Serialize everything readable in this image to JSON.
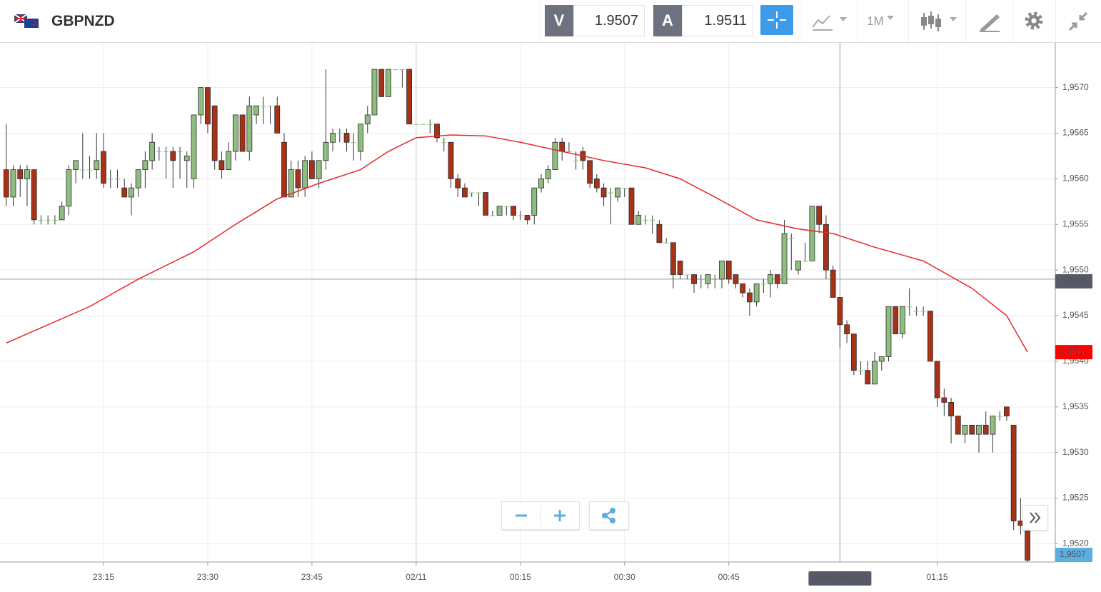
{
  "header": {
    "symbol": "GBPNZD",
    "bid_label": "V",
    "bid": "1.9507",
    "ask_label": "A",
    "ask": "1.9511",
    "timeframe": "1M"
  },
  "chart_data": {
    "type": "candlestick",
    "categories": [
      "23:01",
      "23:02",
      "23:03",
      "23:04",
      "23:05",
      "23:06",
      "23:07",
      "23:08",
      "23:09",
      "23:10",
      "23:11",
      "23:12",
      "23:13",
      "23:14",
      "23:15",
      "23:16",
      "23:17",
      "23:18",
      "23:19",
      "23:20",
      "23:21",
      "23:22",
      "23:23",
      "23:24",
      "23:25",
      "23:26",
      "23:27",
      "23:28",
      "23:29",
      "23:30",
      "23:31",
      "23:32",
      "23:33",
      "23:34",
      "23:35",
      "23:36",
      "23:37",
      "23:38",
      "23:39",
      "23:40",
      "23:41",
      "23:42",
      "23:43",
      "23:44",
      "23:45",
      "23:46",
      "23:47",
      "23:48",
      "23:49",
      "23:50",
      "23:51",
      "23:52",
      "23:53",
      "23:54",
      "23:55",
      "23:56",
      "23:57",
      "23:58",
      "23:59",
      "00:00",
      "00:01",
      "00:02",
      "00:03",
      "00:04",
      "00:05",
      "00:06",
      "00:07",
      "00:08",
      "00:09",
      "00:10",
      "00:11",
      "00:12",
      "00:13",
      "00:14",
      "00:15",
      "00:16",
      "00:17",
      "00:18",
      "00:19",
      "00:20",
      "00:21",
      "00:22",
      "00:23",
      "00:24",
      "00:25",
      "00:26",
      "00:27",
      "00:28",
      "00:29",
      "00:30",
      "00:31",
      "00:32",
      "00:33",
      "00:34",
      "00:35",
      "00:36",
      "00:37",
      "00:38",
      "00:39",
      "00:40",
      "00:41",
      "00:42",
      "00:43",
      "00:44",
      "00:45",
      "00:46",
      "00:47",
      "00:48",
      "00:49",
      "00:50",
      "00:51",
      "00:52",
      "00:53",
      "00:54",
      "00:55",
      "00:56",
      "00:57",
      "00:58",
      "00:59",
      "01:00",
      "01:01",
      "01:02",
      "01:03",
      "01:04",
      "01:05",
      "01:06",
      "01:07",
      "01:08",
      "01:09",
      "01:10",
      "01:11",
      "01:12",
      "01:13",
      "01:14",
      "01:15",
      "01:16",
      "01:17",
      "01:18",
      "01:19",
      "01:20",
      "01:21",
      "01:22",
      "01:23",
      "01:24",
      "01:25",
      "01:26",
      "01:27",
      "01:28"
    ],
    "open": [
      1.9561,
      1.9558,
      1.9561,
      1.956,
      1.9561,
      1.95555,
      1.95555,
      1.95555,
      1.95555,
      1.9557,
      1.9561,
      1.9561,
      1.9561,
      1.9561,
      1.9563,
      1.956,
      1.956,
      1.9559,
      1.9558,
      1.9559,
      1.9561,
      1.9562,
      1.9563,
      1.9563,
      1.9563,
      1.9563,
      1.9562,
      1.956,
      1.9567,
      1.957,
      1.9568,
      1.9562,
      1.9561,
      1.9563,
      1.9567,
      1.9563,
      1.9567,
      1.9568,
      1.9568,
      1.9568,
      1.9564,
      1.9558,
      1.9561,
      1.9559,
      1.9562,
      1.956,
      1.9562,
      1.9564,
      1.9565,
      1.9565,
      1.9564,
      1.9563,
      1.9566,
      1.9567,
      1.9572,
      1.9569,
      1.9572,
      1.9572,
      1.9572,
      1.9566,
      1.9566,
      1.9566,
      1.9566,
      1.9564,
      1.9564,
      1.956,
      1.9559,
      1.95585,
      1.95585,
      1.95585,
      1.9556,
      1.9556,
      1.9557,
      1.9557,
      1.9556,
      1.9556,
      1.9556,
      1.9559,
      1.956,
      1.9561,
      1.9564,
      1.9563,
      1.9562,
      1.9563,
      1.9562,
      1.956,
      1.9559,
      1.95585,
      1.9558,
      1.9559,
      1.9559,
      1.9555,
      1.95555,
      1.95555,
      1.9555,
      1.9553,
      1.9553,
      1.9551,
      1.95495,
      1.95495,
      1.9549,
      1.95485,
      1.9549,
      1.9549,
      1.9551,
      1.95495,
      1.95485,
      1.95475,
      1.95465,
      1.95485,
      1.95485,
      1.95495,
      1.95485,
      1.95535,
      1.955,
      1.9551,
      1.9551,
      1.9557,
      1.9555,
      1.955,
      1.9547,
      1.9544,
      1.9543,
      1.9539,
      1.9539,
      1.95375,
      1.954,
      1.95405,
      1.9546,
      1.9543,
      1.9546,
      1.95455,
      1.95455,
      1.95455,
      1.954,
      1.9536,
      1.95355,
      1.9534,
      1.9532,
      1.9533,
      1.9532,
      1.9533,
      1.9532,
      1.9534,
      1.9535,
      1.9533,
      1.95225,
      1.9522
    ],
    "high": [
      1.9566,
      1.95615,
      1.95615,
      1.95615,
      1.9561,
      1.9556,
      1.9556,
      1.9556,
      1.95575,
      1.95615,
      1.9562,
      1.9565,
      1.95625,
      1.9565,
      1.9565,
      1.9561,
      1.9561,
      1.956,
      1.95595,
      1.9561,
      1.9563,
      1.9565,
      1.95635,
      1.95635,
      1.95635,
      1.95635,
      1.9563,
      1.9567,
      1.957,
      1.957,
      1.9568,
      1.9563,
      1.9564,
      1.9567,
      1.9567,
      1.9569,
      1.9568,
      1.9569,
      1.9568,
      1.9569,
      1.9565,
      1.9562,
      1.9562,
      1.95625,
      1.9563,
      1.9562,
      1.9572,
      1.95655,
      1.95655,
      1.95655,
      1.9565,
      1.9566,
      1.9568,
      1.9572,
      1.9572,
      1.9572,
      1.9572,
      1.9572,
      1.9572,
      1.9566,
      1.9566,
      1.95665,
      1.9566,
      1.95645,
      1.9564,
      1.95605,
      1.95595,
      1.95585,
      1.95585,
      1.95585,
      1.95565,
      1.9557,
      1.9557,
      1.9557,
      1.95565,
      1.9556,
      1.9559,
      1.95605,
      1.95615,
      1.95645,
      1.95645,
      1.9564,
      1.9563,
      1.95635,
      1.9562,
      1.95605,
      1.95595,
      1.9559,
      1.9559,
      1.9559,
      1.9559,
      1.95565,
      1.9556,
      1.9556,
      1.95555,
      1.95535,
      1.9553,
      1.9551,
      1.95495,
      1.95495,
      1.95495,
      1.95495,
      1.95495,
      1.9551,
      1.9551,
      1.95495,
      1.95485,
      1.9548,
      1.95485,
      1.9549,
      1.955,
      1.95495,
      1.95555,
      1.9554,
      1.9551,
      1.9553,
      1.9557,
      1.9557,
      1.9556,
      1.95505,
      1.9547,
      1.95445,
      1.9543,
      1.954,
      1.954,
      1.9541,
      1.95405,
      1.9546,
      1.9546,
      1.9546,
      1.9548,
      1.9546,
      1.9546,
      1.95455,
      1.954,
      1.9537,
      1.9536,
      1.9534,
      1.9533,
      1.9533,
      1.9533,
      1.95345,
      1.9534,
      1.95345,
      1.9535,
      1.9533,
      1.9525,
      1.9522
    ],
    "low": [
      1.9557,
      1.9557,
      1.9558,
      1.9557,
      1.9555,
      1.9555,
      1.9555,
      1.9555,
      1.95555,
      1.9556,
      1.95595,
      1.956,
      1.956,
      1.956,
      1.9559,
      1.9559,
      1.9559,
      1.9558,
      1.9556,
      1.9558,
      1.9559,
      1.9561,
      1.9562,
      1.956,
      1.9559,
      1.956,
      1.9559,
      1.9559,
      1.9566,
      1.9565,
      1.9561,
      1.956,
      1.9561,
      1.9562,
      1.9563,
      1.9562,
      1.9566,
      1.9566,
      1.9566,
      1.9565,
      1.9558,
      1.9558,
      1.9558,
      1.9558,
      1.956,
      1.9559,
      1.9561,
      1.9563,
      1.9564,
      1.9563,
      1.9562,
      1.9562,
      1.9565,
      1.9567,
      1.9569,
      1.9569,
      1.9572,
      1.957,
      1.9566,
      1.9566,
      1.9566,
      1.9565,
      1.9564,
      1.9563,
      1.9559,
      1.9558,
      1.9558,
      1.9558,
      1.9557,
      1.9556,
      1.9556,
      1.9556,
      1.9556,
      1.95555,
      1.95555,
      1.9555,
      1.9555,
      1.95585,
      1.95595,
      1.9561,
      1.9562,
      1.9563,
      1.9561,
      1.9561,
      1.9559,
      1.95585,
      1.9557,
      1.9555,
      1.95575,
      1.9558,
      1.9555,
      1.9555,
      1.9555,
      1.9554,
      1.9553,
      1.9553,
      1.9548,
      1.9549,
      1.9549,
      1.95475,
      1.9548,
      1.9548,
      1.9548,
      1.9548,
      1.95485,
      1.9548,
      1.9547,
      1.9545,
      1.9546,
      1.95475,
      1.9547,
      1.9548,
      1.95485,
      1.955,
      1.95495,
      1.9551,
      1.9551,
      1.9554,
      1.9549,
      1.9547,
      1.95415,
      1.9542,
      1.95385,
      1.95385,
      1.95375,
      1.95375,
      1.9539,
      1.954,
      1.9543,
      1.95425,
      1.9545,
      1.9545,
      1.9545,
      1.954,
      1.9535,
      1.9534,
      1.9531,
      1.9532,
      1.9531,
      1.9532,
      1.953,
      1.9532,
      1.953,
      1.95335,
      1.95335,
      1.95215,
      1.9521,
      1.9518
    ],
    "close": [
      1.9558,
      1.9561,
      1.956,
      1.9561,
      1.95555,
      1.95555,
      1.95555,
      1.95555,
      1.9557,
      1.9561,
      1.9562,
      1.9561,
      1.9561,
      1.9562,
      1.95595,
      1.956,
      1.956,
      1.9558,
      1.9559,
      1.9561,
      1.9562,
      1.9564,
      1.9563,
      1.9563,
      1.9562,
      1.9563,
      1.95625,
      1.9567,
      1.957,
      1.9566,
      1.9562,
      1.9561,
      1.9563,
      1.9567,
      1.9563,
      1.9568,
      1.9568,
      1.9568,
      1.9568,
      1.9565,
      1.9558,
      1.9561,
      1.9559,
      1.9562,
      1.956,
      1.9562,
      1.9564,
      1.9565,
      1.9565,
      1.9564,
      1.9564,
      1.9566,
      1.9567,
      1.9572,
      1.9569,
      1.9572,
      1.9572,
      1.9572,
      1.9566,
      1.9566,
      1.9566,
      1.9566,
      1.95645,
      1.9564,
      1.956,
      1.9559,
      1.9558,
      1.95585,
      1.95585,
      1.9556,
      1.9556,
      1.9557,
      1.9557,
      1.9556,
      1.9556,
      1.95555,
      1.9559,
      1.956,
      1.9561,
      1.9564,
      1.9563,
      1.9563,
      1.9562,
      1.9562,
      1.95595,
      1.9559,
      1.9558,
      1.95585,
      1.9559,
      1.9559,
      1.9555,
      1.9556,
      1.95555,
      1.95555,
      1.9553,
      1.9553,
      1.95495,
      1.95495,
      1.95495,
      1.95485,
      1.9549,
      1.95495,
      1.9549,
      1.9551,
      1.9549,
      1.95485,
      1.95475,
      1.95465,
      1.95485,
      1.95485,
      1.95495,
      1.95485,
      1.9554,
      1.95535,
      1.9551,
      1.9551,
      1.9557,
      1.9555,
      1.955,
      1.9547,
      1.9544,
      1.9543,
      1.9539,
      1.9539,
      1.95375,
      1.954,
      1.95405,
      1.9546,
      1.9543,
      1.9546,
      1.9546,
      1.95455,
      1.95455,
      1.954,
      1.9536,
      1.95355,
      1.9534,
      1.9532,
      1.9533,
      1.9532,
      1.9533,
      1.9532,
      1.9534,
      1.9534,
      1.9534,
      1.95225,
      1.9522,
      1.95182
    ],
    "up_color": "#8fbd7f",
    "down_color": "#a83218",
    "moving_average": {
      "color": "#e8262b",
      "x": [
        "23:01",
        "23:07",
        "23:13",
        "23:20",
        "23:28",
        "23:34",
        "23:40",
        "23:46",
        "23:52",
        "23:56",
        "00:00",
        "00:05",
        "00:10",
        "00:15",
        "00:21",
        "00:27",
        "00:33",
        "00:38",
        "00:43",
        "00:49",
        "00:55",
        "01:00",
        "01:06",
        "01:13",
        "01:20",
        "01:25",
        "01:28"
      ],
      "values": [
        1.9542,
        1.9544,
        1.9546,
        1.9549,
        1.9552,
        1.9555,
        1.95578,
        1.95595,
        1.9561,
        1.9563,
        1.95645,
        1.95648,
        1.95647,
        1.9564,
        1.9563,
        1.9562,
        1.95612,
        1.956,
        1.9558,
        1.95555,
        1.95545,
        1.9554,
        1.95525,
        1.9551,
        1.9548,
        1.9545,
        1.9541
      ]
    },
    "ylim": [
      1.9518,
      1.95749
    ],
    "yticks": [
      {
        "value": 1.952,
        "label": "1,9520"
      },
      {
        "value": 1.9525,
        "label": "1,9525"
      },
      {
        "value": 1.953,
        "label": "1,9530"
      },
      {
        "value": 1.9535,
        "label": "1,9535"
      },
      {
        "value": 1.954,
        "label": "1,9540"
      },
      {
        "value": 1.9545,
        "label": "1,9545"
      },
      {
        "value": 1.955,
        "label": "1,9550"
      },
      {
        "value": 1.9555,
        "label": "1,9555"
      },
      {
        "value": 1.956,
        "label": "1,9560"
      },
      {
        "value": 1.9565,
        "label": "1,9565"
      },
      {
        "value": 1.957,
        "label": "1,9570"
      }
    ],
    "xticks": [
      "23:15",
      "23:30",
      "23:45",
      {
        "value": "00:00",
        "label": "02/11"
      },
      "00:15",
      "00:30",
      "00:45",
      "01:15"
    ],
    "grid": true,
    "crosshair": {
      "x": "01:01",
      "x_label": "02/11 01:01",
      "value": 1.9549,
      "label": "1,9549"
    },
    "ma_last": {
      "value": 1.9541,
      "label": "1,9541",
      "color": "#ff0000"
    },
    "last_price": {
      "label": "1,9507",
      "color": "#5aaee0"
    }
  }
}
